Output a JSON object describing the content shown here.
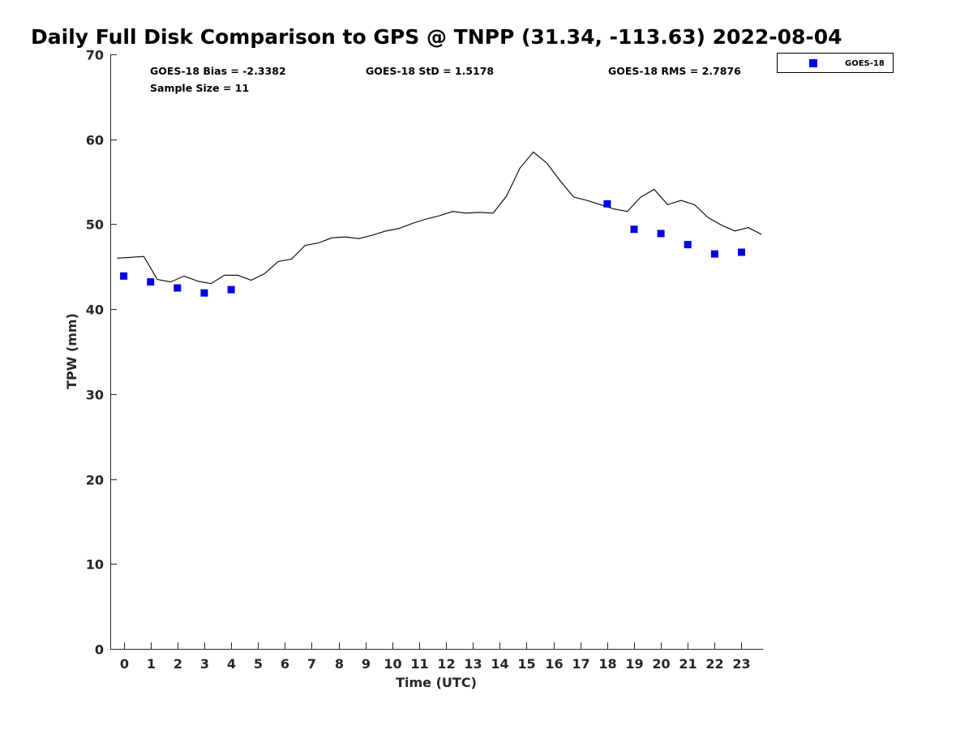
{
  "chart_data": {
    "type": "scatter",
    "title": "Daily Full Disk Comparison to GPS @ TNPP (31.34, -113.63) 2022-08-04",
    "xlabel": "Time (UTC)",
    "ylabel": "TPW (mm)",
    "xlim": [
      -0.5,
      23.8
    ],
    "ylim": [
      0,
      70
    ],
    "x_ticks": [
      "0",
      "1",
      "2",
      "3",
      "4",
      "5",
      "6",
      "7",
      "8",
      "9",
      "10",
      "11",
      "12",
      "13",
      "14",
      "15",
      "16",
      "17",
      "18",
      "19",
      "20",
      "21",
      "22",
      "23"
    ],
    "y_ticks": [
      "0",
      "10",
      "20",
      "30",
      "40",
      "50",
      "60",
      "70"
    ],
    "grid": false,
    "legend_position": "top-right",
    "stats": {
      "bias": "GOES-18 Bias = -2.3382",
      "std": "GOES-18 StD = 1.5178",
      "rms": "GOES-18 RMS = 2.7876",
      "sample": "Sample Size = 11"
    },
    "series": [
      {
        "kind": "line",
        "color": "#000000",
        "x": [
          -0.25,
          0.25,
          0.75,
          1.25,
          1.75,
          2.25,
          2.75,
          3.25,
          3.75,
          4.25,
          4.75,
          5.25,
          5.75,
          6.25,
          6.75,
          7.25,
          7.75,
          8.25,
          8.75,
          9.25,
          9.75,
          10.25,
          10.75,
          11.25,
          11.75,
          12.25,
          12.75,
          13.25,
          13.75,
          14.25,
          14.75,
          15.25,
          15.75,
          16.25,
          16.75,
          17.25,
          17.75,
          18.25,
          18.75,
          19.25,
          19.75,
          20.25,
          20.75,
          21.25,
          21.75,
          22.25,
          22.75,
          23.25,
          23.75
        ],
        "y": [
          46.0,
          46.1,
          46.2,
          43.5,
          43.2,
          43.9,
          43.3,
          43.0,
          44.0,
          44.0,
          43.4,
          44.2,
          45.6,
          45.9,
          47.5,
          47.8,
          48.4,
          48.5,
          48.3,
          48.7,
          49.2,
          49.5,
          50.1,
          50.6,
          51.0,
          51.5,
          51.3,
          51.4,
          51.3,
          53.3,
          56.6,
          58.5,
          57.2,
          55.1,
          53.2,
          52.8,
          52.3,
          51.8,
          51.5,
          53.2,
          54.1,
          52.3,
          52.8,
          52.3,
          50.8,
          49.9,
          49.2,
          49.6,
          48.8
        ]
      },
      {
        "name": "GOES-18",
        "kind": "scatter",
        "color": "#0000e6",
        "x": [
          0,
          1,
          2,
          3,
          4,
          18,
          19,
          20,
          21,
          22,
          23
        ],
        "y": [
          43.9,
          43.2,
          42.5,
          41.9,
          42.3,
          52.4,
          49.4,
          48.9,
          47.6,
          46.5,
          46.7
        ]
      }
    ]
  }
}
